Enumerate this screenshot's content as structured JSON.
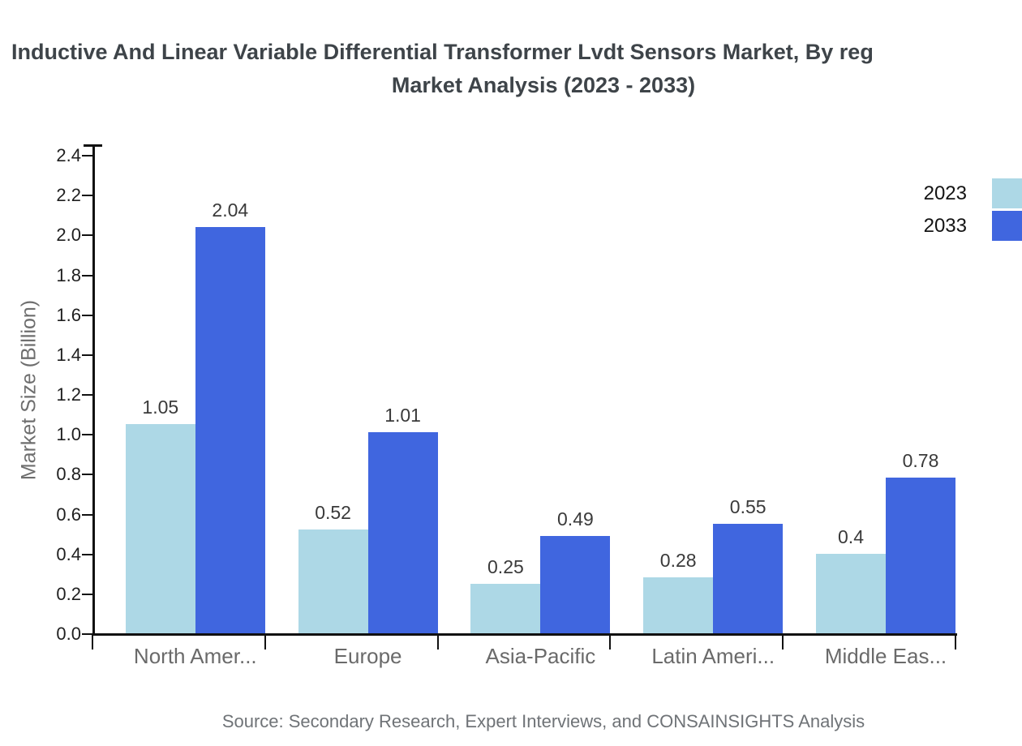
{
  "source": {
    "text": "Source: Secondary Research, Expert Interviews, and CONSAINSIGHTS Analysis"
  },
  "chart_data": {
    "type": "bar",
    "title_lines": [
      "Inductive And Linear Variable Differential Transformer Lvdt Sensors Market, By reg",
      "Market Analysis (2023 - 2033)"
    ],
    "categories": [
      "North Amer...",
      "Europe",
      "Asia-Pacific",
      "Latin Ameri...",
      "Middle Eas..."
    ],
    "series": [
      {
        "name": "2023",
        "color": "#add8e6",
        "values": [
          1.05,
          0.52,
          0.25,
          0.28,
          0.4
        ]
      },
      {
        "name": "2033",
        "color": "#4066df",
        "values": [
          2.04,
          1.01,
          0.49,
          0.55,
          0.78
        ]
      }
    ],
    "xlabel": "",
    "ylabel": "Market Size (Billion)",
    "ylim": [
      0,
      2.4
    ],
    "ytick_step": 0.2,
    "grid": false,
    "legend_position": "top-right",
    "axis_color": "#111111"
  }
}
